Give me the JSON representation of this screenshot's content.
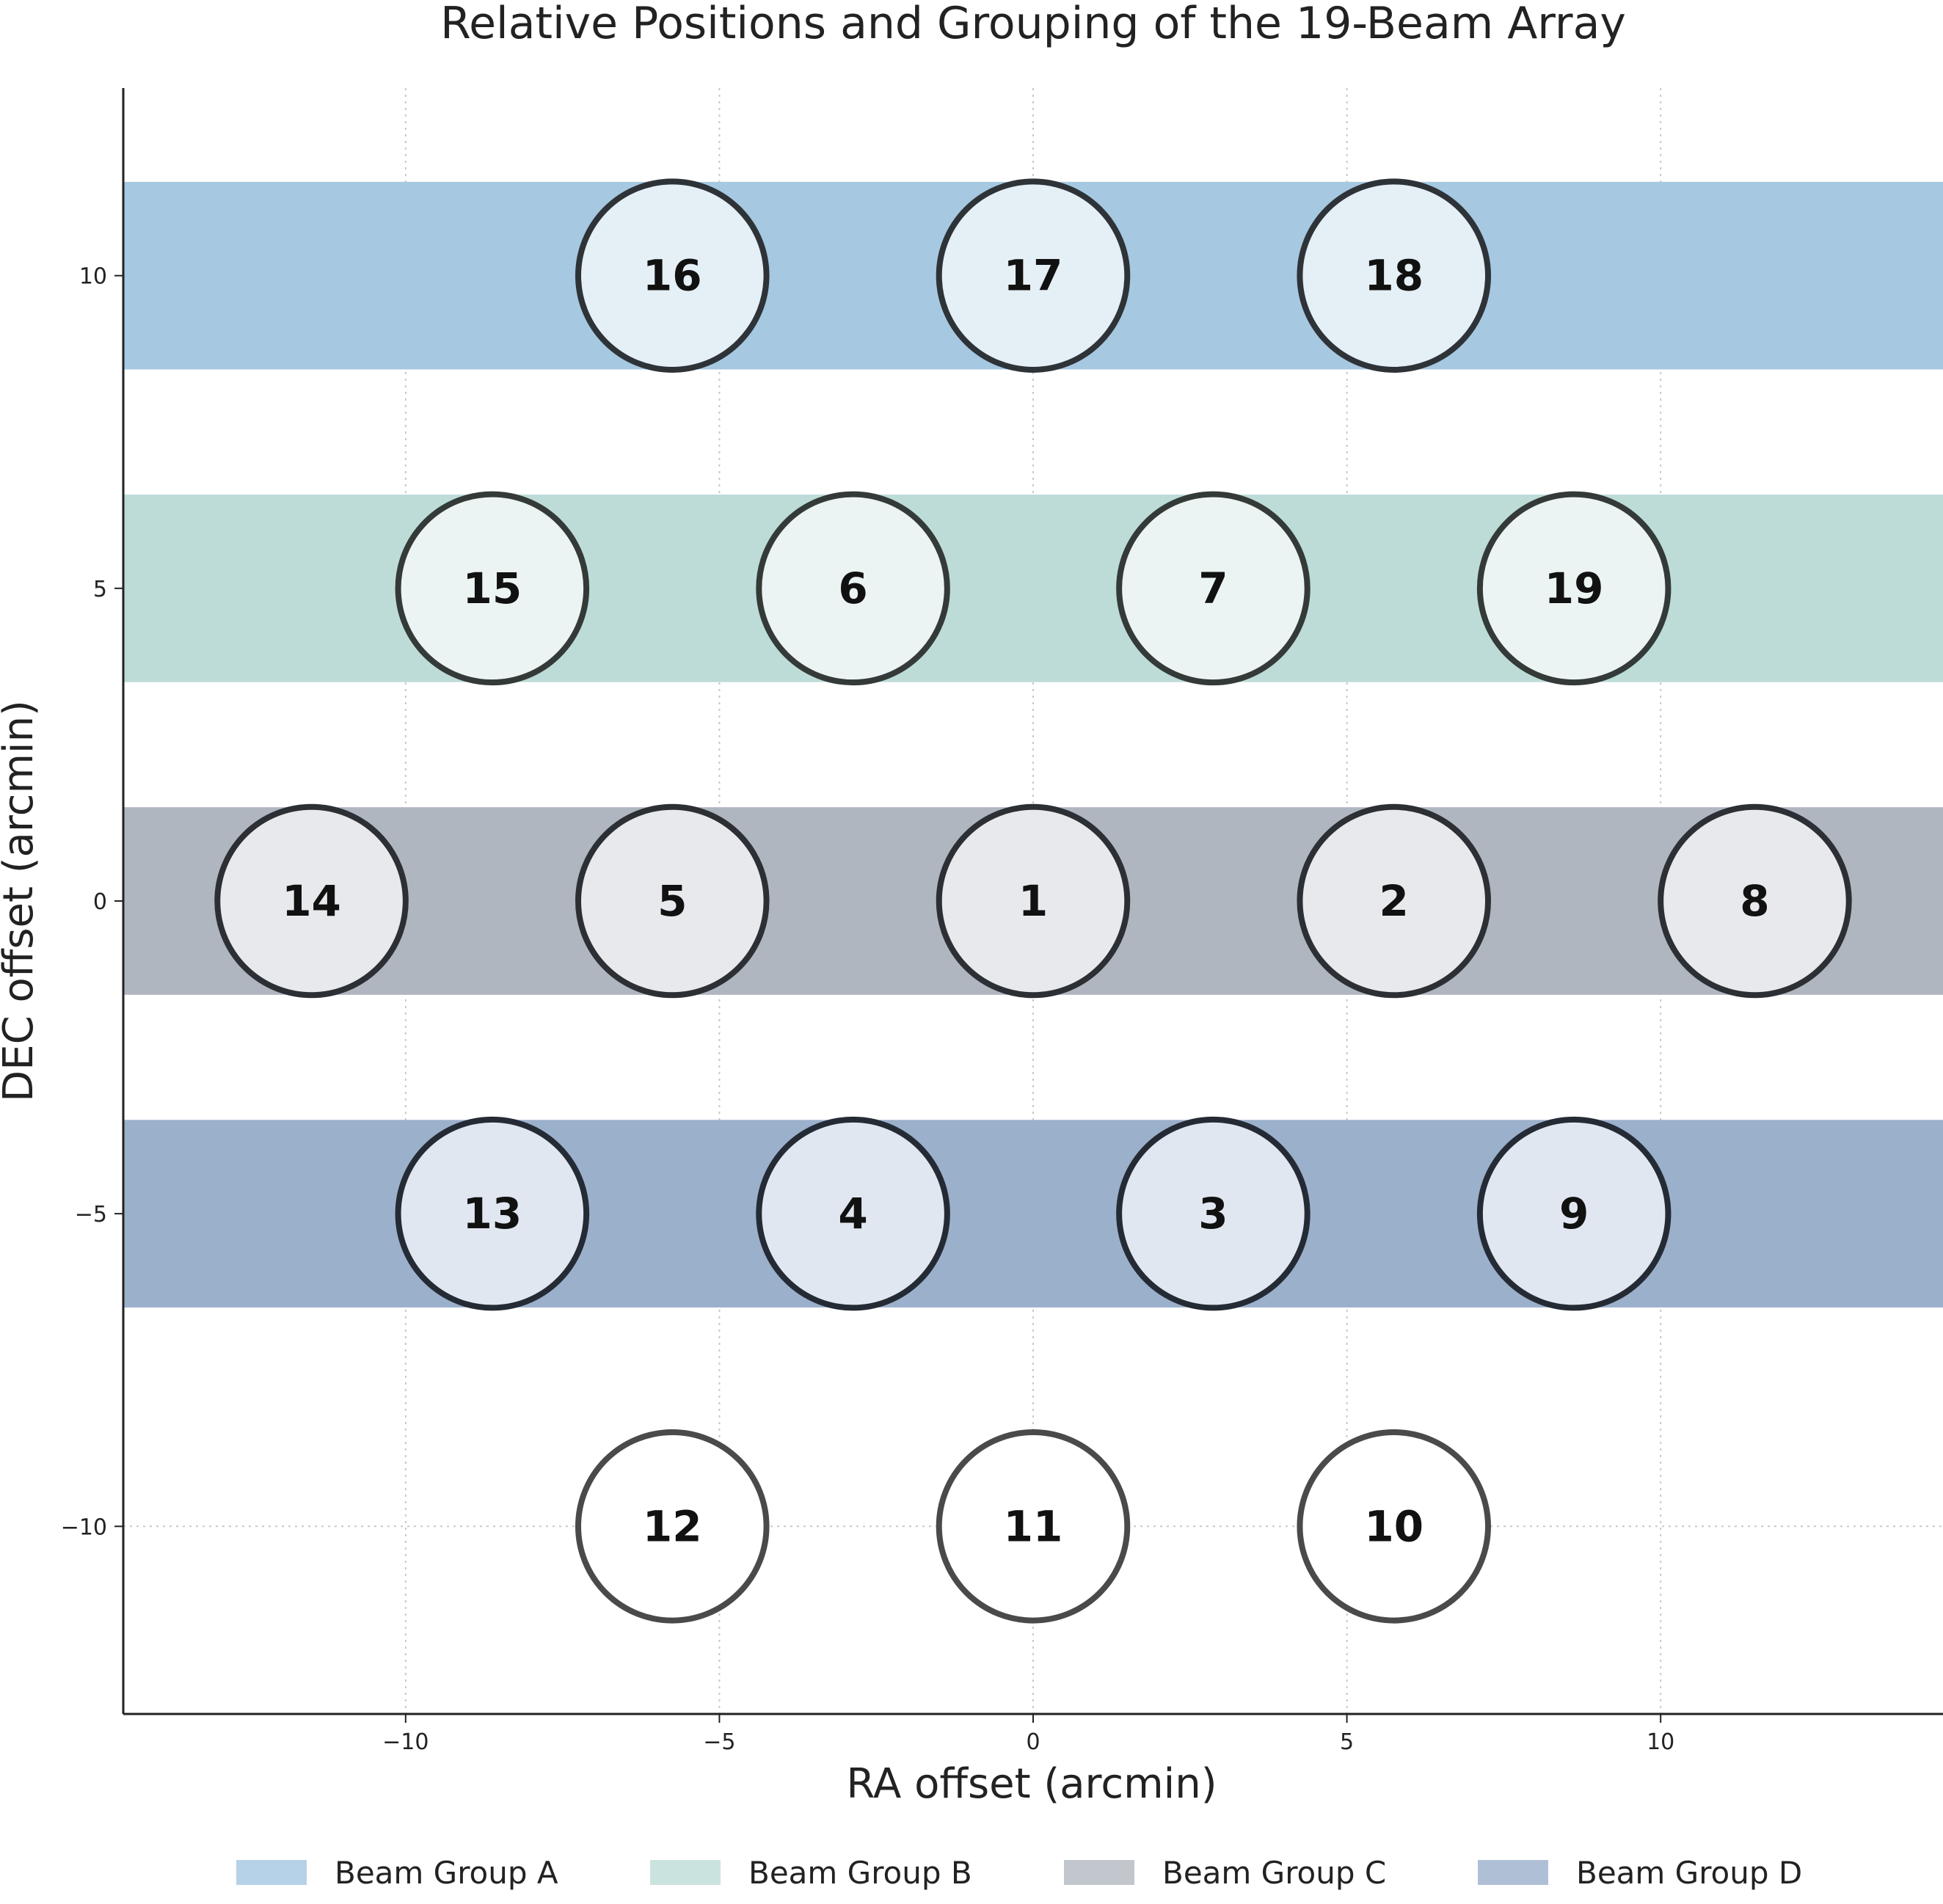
{
  "chart_data": {
    "type": "scatter",
    "title": "Relative Positions and Grouping of the 19-Beam Array",
    "xlabel": "RA offset (arcmin)",
    "ylabel": "DEC offset (arcmin)",
    "xlim": [
      -14.5,
      14.5
    ],
    "ylim": [
      -13,
      13
    ],
    "xticks": [
      -10,
      -5,
      0,
      5,
      10
    ],
    "yticks": [
      -10,
      -5,
      0,
      5,
      10
    ],
    "xtick_labels": [
      "−10",
      "−5",
      "0",
      "5",
      "10"
    ],
    "ytick_labels": [
      "−10",
      "−5",
      "0",
      "5",
      "10"
    ],
    "grid": true,
    "beam_radius": 1.5,
    "groups": [
      {
        "name": "Beam Group A",
        "dec_range": [
          8.5,
          11.5
        ],
        "color": "#a6c8e1",
        "legend_color": "#b6d2e8"
      },
      {
        "name": "Beam Group B",
        "dec_range": [
          3.5,
          6.5
        ],
        "color": "#bddcd8",
        "legend_color": "#cbe3df"
      },
      {
        "name": "Beam Group C",
        "dec_range": [
          -1.5,
          1.5
        ],
        "color": "#b0b6c0",
        "legend_color": "#c2c7ce"
      },
      {
        "name": "Beam Group D",
        "dec_range": [
          -6.5,
          -3.5
        ],
        "color": "#9bb0cb",
        "legend_color": "#afbfd6"
      }
    ],
    "beams": [
      {
        "id": "1",
        "ra": 0.0,
        "dec": 0.0,
        "group": "C"
      },
      {
        "id": "2",
        "ra": 5.75,
        "dec": 0.0,
        "group": "C"
      },
      {
        "id": "3",
        "ra": 2.87,
        "dec": -5.0,
        "group": "D"
      },
      {
        "id": "4",
        "ra": -2.87,
        "dec": -5.0,
        "group": "D"
      },
      {
        "id": "5",
        "ra": -5.75,
        "dec": 0.0,
        "group": "C"
      },
      {
        "id": "6",
        "ra": -2.87,
        "dec": 5.0,
        "group": "B"
      },
      {
        "id": "7",
        "ra": 2.87,
        "dec": 5.0,
        "group": "B"
      },
      {
        "id": "8",
        "ra": 11.5,
        "dec": 0.0,
        "group": "C"
      },
      {
        "id": "9",
        "ra": 8.62,
        "dec": -5.0,
        "group": "D"
      },
      {
        "id": "10",
        "ra": 5.75,
        "dec": -10.0,
        "group": ""
      },
      {
        "id": "11",
        "ra": 0.0,
        "dec": -10.0,
        "group": ""
      },
      {
        "id": "12",
        "ra": -5.75,
        "dec": -10.0,
        "group": ""
      },
      {
        "id": "13",
        "ra": -8.62,
        "dec": -5.0,
        "group": "D"
      },
      {
        "id": "14",
        "ra": -11.5,
        "dec": 0.0,
        "group": "C"
      },
      {
        "id": "15",
        "ra": -8.62,
        "dec": 5.0,
        "group": "B"
      },
      {
        "id": "16",
        "ra": -5.75,
        "dec": 10.0,
        "group": "A"
      },
      {
        "id": "17",
        "ra": 0.0,
        "dec": 10.0,
        "group": "A"
      },
      {
        "id": "18",
        "ra": 5.75,
        "dec": 10.0,
        "group": "A"
      },
      {
        "id": "19",
        "ra": 8.62,
        "dec": 5.0,
        "group": "B"
      }
    ],
    "beam_fills": {
      "A": "#e4eff6",
      "B": "#ebf4f2",
      "C": "#e8e9ed",
      "D": "#e1e7f0",
      "": "#ffffff"
    },
    "beam_strokes": {
      "A": "#2e3338",
      "B": "#333a38",
      "C": "#2c2f34",
      "D": "#252b35",
      "": "#4a4a4a"
    },
    "legend_position": "bottom-center"
  }
}
